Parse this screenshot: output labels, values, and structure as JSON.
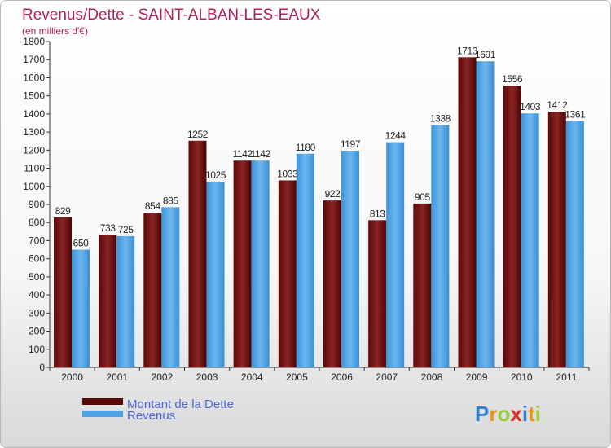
{
  "chart_data": {
    "type": "bar",
    "title": "Revenus/Dette - SAINT-ALBAN-LES-EAUX",
    "subtitle": "(en milliers d'€)",
    "categories": [
      "2000",
      "2001",
      "2002",
      "2003",
      "2004",
      "2005",
      "2006",
      "2007",
      "2008",
      "2009",
      "2010",
      "2011"
    ],
    "series": [
      {
        "name": "Montant de la Dette",
        "color": "#6b1010",
        "values": [
          829,
          733,
          854,
          1252,
          1142,
          1033,
          922,
          813,
          905,
          1713,
          1556,
          1412
        ]
      },
      {
        "name": "Revenus",
        "color": "#4fa3e3",
        "values": [
          650,
          725,
          885,
          1025,
          1142,
          1180,
          1197,
          1244,
          1338,
          1691,
          1403,
          1361
        ]
      }
    ],
    "ylim": [
      0,
      1800
    ],
    "yticks": [
      0,
      100,
      200,
      300,
      400,
      500,
      600,
      700,
      800,
      900,
      1000,
      1100,
      1200,
      1300,
      1400,
      1500,
      1600,
      1700,
      1800
    ],
    "grid": false,
    "legend_position": "bottom-left",
    "watermark": "Proxiti"
  }
}
